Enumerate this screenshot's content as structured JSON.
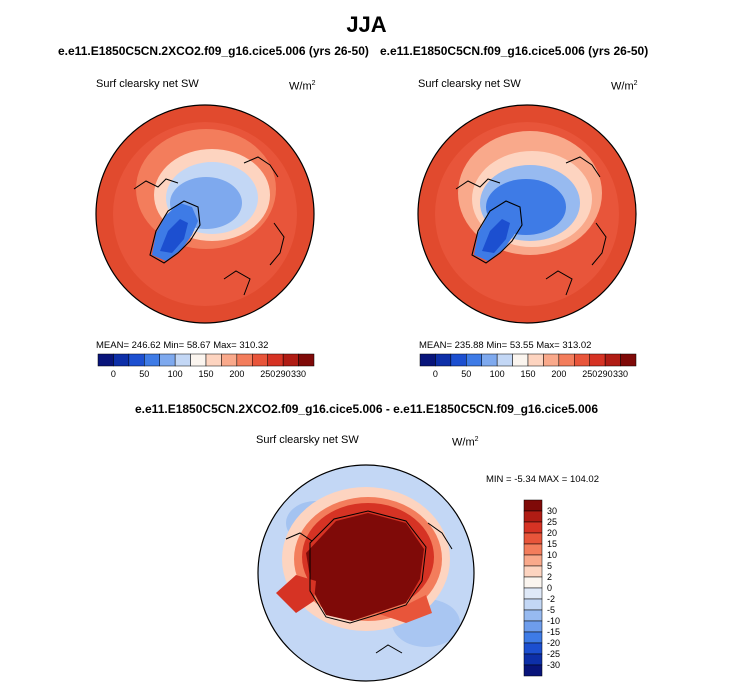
{
  "page": {
    "title": "JJA",
    "diff_caption": "e.e11.E1850C5CN.2XCO2.f09_g16.cice5.006 - e.e11.E1850C5CN.f09_g16.cice5.006"
  },
  "panels": [
    {
      "caption": "e.e11.E1850C5CN.2XCO2.f09_g16.cice5.006 (yrs 26-50)",
      "label": "Surf clearsky net SW",
      "units": "W/m",
      "units_sup": "2",
      "stats": "MEAN= 246.62  Min=  58.67  Max= 310.32"
    },
    {
      "caption": "e.e11.E1850C5CN.f09_g16.cice5.006 (yrs 26-50)",
      "label": "Surf clearsky net SW",
      "units": "W/m",
      "units_sup": "2",
      "stats": "MEAN= 235.88  Min=  53.55  Max= 313.02"
    },
    {
      "label": "Surf clearsky net SW",
      "units": "W/m",
      "units_sup": "2",
      "stats": "MIN =  -5.34 MAX = 104.02"
    }
  ],
  "colors": {
    "abs_scale": [
      "#08147a",
      "#0d2fa8",
      "#1c4fd0",
      "#3e7be6",
      "#7ea9ee",
      "#c3d7f5",
      "#fbf5ef",
      "#fdd4c0",
      "#f9a98b",
      "#f37d5c",
      "#e8553a",
      "#d63324",
      "#b01c14",
      "#7f0a08"
    ],
    "diff_scale": [
      "#08147a",
      "#0d2fa8",
      "#1c4fd0",
      "#3e7be6",
      "#6e9dec",
      "#97baf0",
      "#c3d7f5",
      "#dfe9f8",
      "#fbf5ef",
      "#fdd4c0",
      "#f9a98b",
      "#f37d5c",
      "#e8553a",
      "#d63324",
      "#b01c14",
      "#7f0a08"
    ]
  },
  "chart_data": [
    {
      "type": "heatmap",
      "projection": "north polar stereographic",
      "title": "e.e11.E1850C5CN.2XCO2.f09_g16.cice5.006 (yrs 26-50)",
      "variable": "Surf clearsky net SW",
      "units": "W/m2",
      "mean": 246.62,
      "min": 58.67,
      "max": 310.32,
      "colorbar_ticks": [
        "0",
        "50",
        "100",
        "150",
        "200",
        "250",
        "290",
        "330"
      ]
    },
    {
      "type": "heatmap",
      "projection": "north polar stereographic",
      "title": "e.e11.E1850C5CN.f09_g16.cice5.006 (yrs 26-50)",
      "variable": "Surf clearsky net SW",
      "units": "W/m2",
      "mean": 235.88,
      "min": 53.55,
      "max": 313.02,
      "colorbar_ticks": [
        "0",
        "50",
        "100",
        "150",
        "200",
        "250",
        "290",
        "330"
      ]
    },
    {
      "type": "heatmap",
      "projection": "north polar stereographic",
      "title": "e.e11.E1850C5CN.2XCO2.f09_g16.cice5.006 - e.e11.E1850C5CN.f09_g16.cice5.006",
      "variable": "Surf clearsky net SW",
      "units": "W/m2",
      "min": -5.34,
      "max": 104.02,
      "colorbar_ticks": [
        "30",
        "25",
        "20",
        "15",
        "10",
        "5",
        "2",
        "0",
        "-2",
        "-5",
        "-10",
        "-15",
        "-20",
        "-25",
        "-30"
      ]
    }
  ]
}
